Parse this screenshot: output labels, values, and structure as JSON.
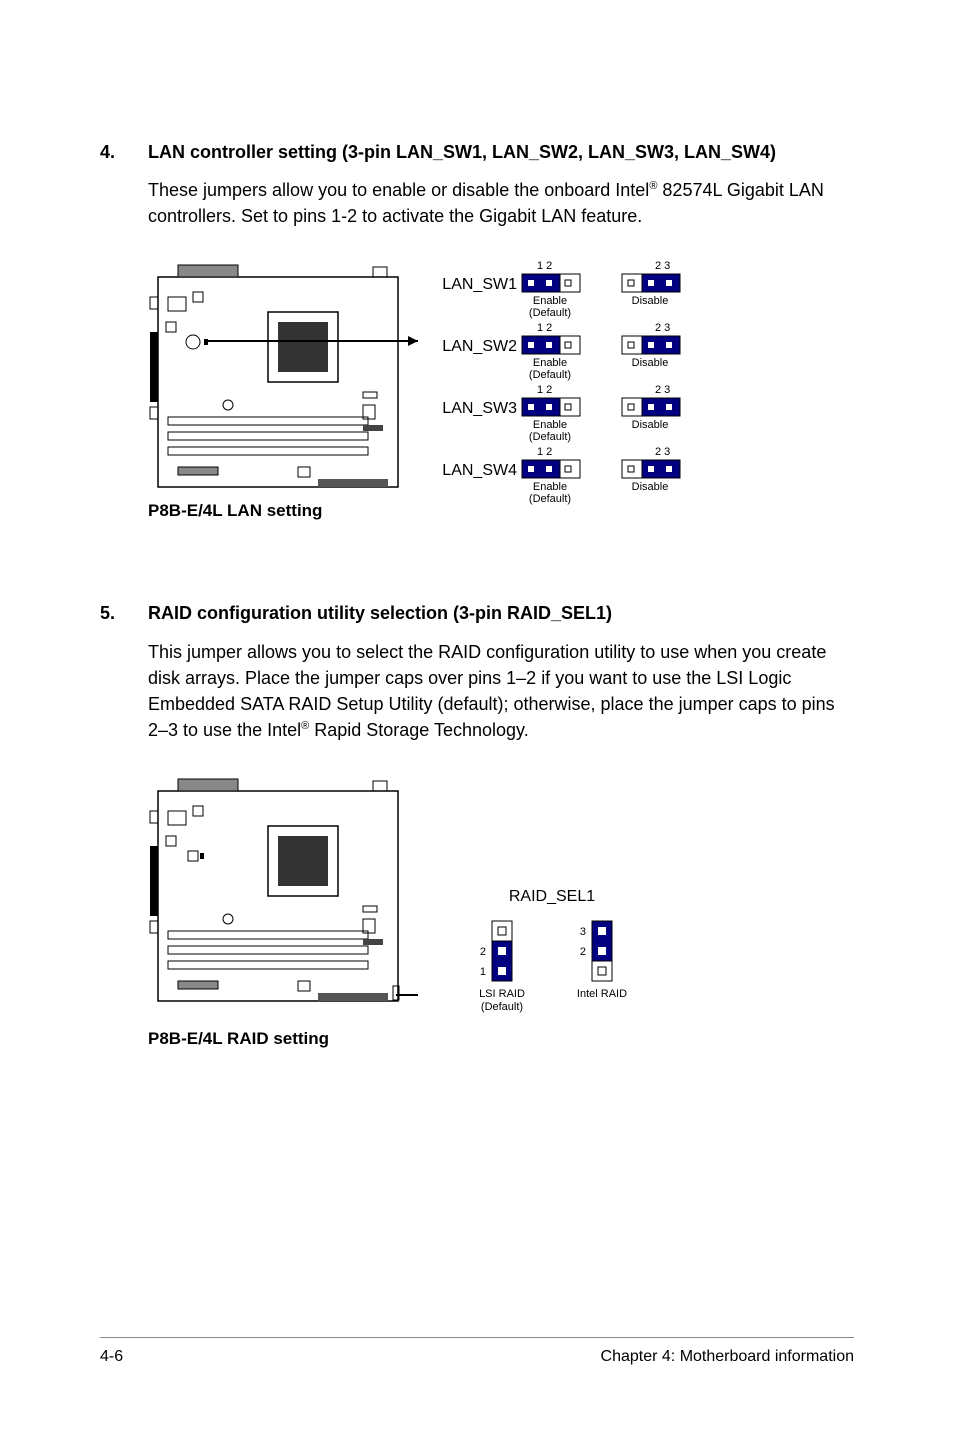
{
  "section4": {
    "number": "4.",
    "title": "LAN controller setting (3-pin LAN_SW1, LAN_SW2, LAN_SW3, LAN_SW4)",
    "body_pre": "These jumpers allow you to enable or disable the onboard Intel",
    "body_sup": "®",
    "body_post": " 82574L Gigabit LAN controllers. Set to pins 1-2 to activate the Gigabit LAN feature.",
    "diagram": {
      "caption": "P8B-E/4L LAN setting",
      "jumpers": [
        {
          "label": "LAN_SW1",
          "enable": "Enable",
          "default": "(Default)",
          "disable": "Disable",
          "pins_left": "1  2",
          "pins_right": "2  3"
        },
        {
          "label": "LAN_SW2",
          "enable": "Enable",
          "default": "(Default)",
          "disable": "Disable",
          "pins_left": "1  2",
          "pins_right": "2  3"
        },
        {
          "label": "LAN_SW3",
          "enable": "Enable",
          "default": "(Default)",
          "disable": "Disable",
          "pins_left": "1  2",
          "pins_right": "2  3"
        },
        {
          "label": "LAN_SW4",
          "enable": "Enable",
          "default": "(Default)",
          "disable": "Disable",
          "pins_left": "1  2",
          "pins_right": "2  3"
        }
      ],
      "colors": {
        "jumper_on": "#000080",
        "pin": "#ffffff",
        "stroke": "#000000"
      }
    }
  },
  "section5": {
    "number": "5.",
    "title": "RAID configuration utility selection (3-pin RAID_SEL1)",
    "body_pre": "This jumper allows you to select the RAID configuration utility to use when you create disk arrays. Place the jumper caps over pins 1–2 if you want to use the LSI Logic Embedded SATA RAID Setup Utility (default); otherwise, place the jumper caps to pins 2–3 to use the Intel",
    "body_sup": "®",
    "body_post": " Rapid Storage Technology.",
    "diagram": {
      "caption": "P8B-E/4L RAID setting",
      "header": "RAID_SEL1",
      "left": {
        "pins": [
          "1",
          "2"
        ],
        "label1": "LSI RAID",
        "label2": "(Default)"
      },
      "right": {
        "pins": [
          "2",
          "3"
        ],
        "label1": "Intel RAID"
      },
      "colors": {
        "jumper_on": "#000080",
        "pin": "#ffffff",
        "stroke": "#000000"
      }
    }
  },
  "footer": {
    "page": "4-6",
    "chapter": "Chapter 4: Motherboard information"
  }
}
